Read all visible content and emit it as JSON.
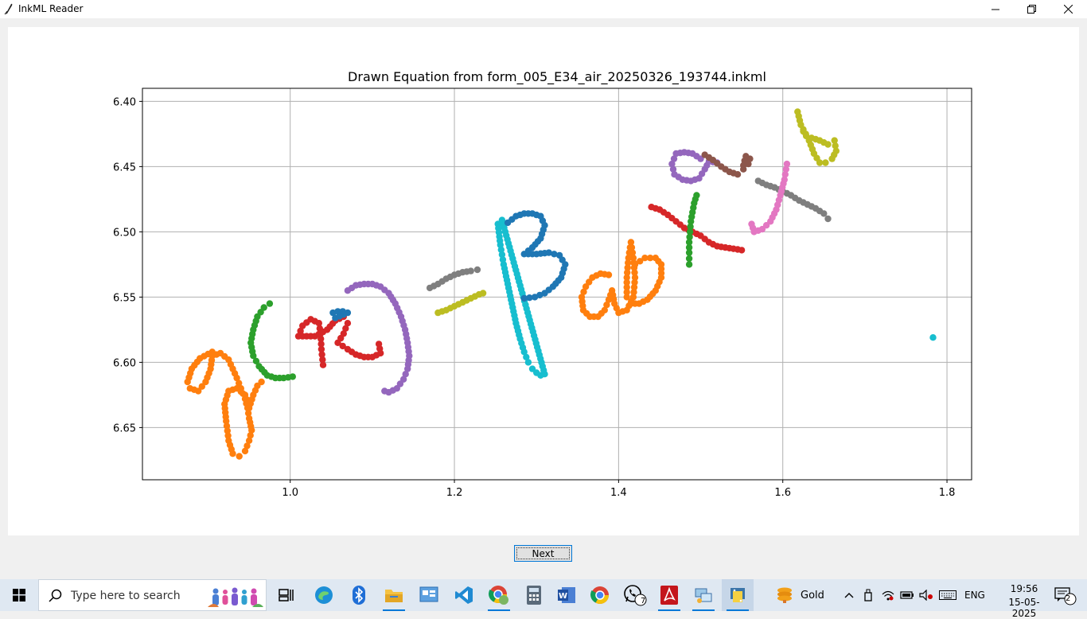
{
  "window": {
    "title": "InkML Reader"
  },
  "chart_data": {
    "type": "scatter",
    "title": "Drawn Equation from form_005_E34_air_20250326_193744.inkml",
    "xlabel": "",
    "ylabel": "",
    "xlim": [
      0.82,
      1.83
    ],
    "ylim": [
      6.69,
      6.39
    ],
    "y_inverted": true,
    "xticks": [
      "1.0",
      "1.2",
      "1.4",
      "1.6",
      "1.8"
    ],
    "xtick_values": [
      1.0,
      1.2,
      1.4,
      1.6,
      1.8
    ],
    "yticks": [
      "6.40",
      "6.45",
      "6.50",
      "6.55",
      "6.60",
      "6.65"
    ],
    "ytick_values": [
      6.4,
      6.45,
      6.5,
      6.55,
      6.6,
      6.65
    ],
    "grid": true,
    "series": [
      {
        "color": "#ff7f0e",
        "points": [
          [
            0.905,
            6.592
          ],
          [
            0.89,
            6.597
          ],
          [
            0.88,
            6.605
          ],
          [
            0.875,
            6.615
          ],
          [
            0.878,
            6.62
          ],
          [
            0.888,
            6.622
          ],
          [
            0.897,
            6.615
          ],
          [
            0.903,
            6.605
          ],
          [
            0.905,
            6.595
          ],
          [
            0.915,
            6.593
          ],
          [
            0.925,
            6.598
          ],
          [
            0.93,
            6.605
          ],
          [
            0.935,
            6.612
          ],
          [
            0.94,
            6.62
          ],
          [
            0.945,
            6.628
          ],
          [
            0.948,
            6.635
          ],
          [
            0.95,
            6.643
          ],
          [
            0.953,
            6.652
          ],
          [
            0.95,
            6.66
          ],
          [
            0.945,
            6.668
          ],
          [
            0.938,
            6.672
          ],
          [
            0.93,
            6.67
          ],
          [
            0.925,
            6.66
          ],
          [
            0.922,
            6.645
          ],
          [
            0.92,
            6.632
          ],
          [
            0.925,
            6.622
          ],
          [
            0.935,
            6.62
          ],
          [
            0.945,
            6.625
          ],
          [
            0.95,
            6.635
          ],
          [
            0.955,
            6.625
          ],
          [
            0.96,
            6.618
          ],
          [
            0.965,
            6.615
          ]
        ]
      },
      {
        "color": "#2ca02c",
        "points": [
          [
            0.975,
            6.555
          ],
          [
            0.968,
            6.558
          ],
          [
            0.96,
            6.565
          ],
          [
            0.955,
            6.575
          ],
          [
            0.952,
            6.585
          ],
          [
            0.955,
            6.595
          ],
          [
            0.962,
            6.603
          ],
          [
            0.972,
            6.61
          ],
          [
            0.982,
            6.612
          ],
          [
            0.992,
            6.612
          ],
          [
            1.003,
            6.611
          ]
        ]
      },
      {
        "color": "#d62728",
        "points": [
          [
            1.04,
            6.602
          ],
          [
            1.038,
            6.59
          ],
          [
            1.037,
            6.578
          ],
          [
            1.035,
            6.57
          ],
          [
            1.025,
            6.567
          ],
          [
            1.015,
            6.572
          ],
          [
            1.01,
            6.58
          ],
          [
            1.03,
            6.58
          ],
          [
            1.045,
            6.575
          ],
          [
            1.055,
            6.568
          ],
          [
            1.065,
            6.565
          ],
          [
            1.07,
            6.57
          ],
          [
            1.065,
            6.578
          ],
          [
            1.058,
            6.585
          ],
          [
            1.07,
            6.59
          ],
          [
            1.08,
            6.594
          ],
          [
            1.09,
            6.596
          ],
          [
            1.1,
            6.596
          ],
          [
            1.11,
            6.593
          ],
          [
            1.108,
            6.586
          ]
        ]
      },
      {
        "color": "#1f77b4",
        "points": [
          [
            1.052,
            6.562
          ],
          [
            1.058,
            6.561
          ],
          [
            1.064,
            6.561
          ],
          [
            1.07,
            6.562
          ],
          [
            1.055,
            6.566
          ]
        ]
      },
      {
        "color": "#9467bd",
        "points": [
          [
            1.07,
            6.545
          ],
          [
            1.08,
            6.541
          ],
          [
            1.09,
            6.54
          ],
          [
            1.1,
            6.54
          ],
          [
            1.11,
            6.542
          ],
          [
            1.12,
            6.547
          ],
          [
            1.128,
            6.555
          ],
          [
            1.135,
            6.565
          ],
          [
            1.14,
            6.575
          ],
          [
            1.143,
            6.585
          ],
          [
            1.145,
            6.595
          ],
          [
            1.143,
            6.605
          ],
          [
            1.138,
            6.613
          ],
          [
            1.13,
            6.62
          ],
          [
            1.12,
            6.623
          ],
          [
            1.115,
            6.622
          ]
        ]
      },
      {
        "color": "#7f7f7f",
        "points": [
          [
            1.17,
            6.543
          ],
          [
            1.18,
            6.54
          ],
          [
            1.19,
            6.536
          ],
          [
            1.2,
            6.533
          ],
          [
            1.21,
            6.531
          ],
          [
            1.22,
            6.53
          ],
          [
            1.228,
            6.529
          ]
        ]
      },
      {
        "color": "#bcbd22",
        "points": [
          [
            1.18,
            6.562
          ],
          [
            1.19,
            6.56
          ],
          [
            1.2,
            6.557
          ],
          [
            1.21,
            6.554
          ],
          [
            1.22,
            6.551
          ],
          [
            1.23,
            6.548
          ],
          [
            1.235,
            6.547
          ]
        ]
      },
      {
        "color": "#17becf",
        "points": [
          [
            1.253,
            6.494
          ],
          [
            1.256,
            6.51
          ],
          [
            1.26,
            6.525
          ],
          [
            1.265,
            6.54
          ],
          [
            1.27,
            6.555
          ],
          [
            1.275,
            6.57
          ],
          [
            1.28,
            6.582
          ],
          [
            1.285,
            6.592
          ],
          [
            1.29,
            6.6
          ],
          [
            1.295,
            6.605
          ],
          [
            1.3,
            6.608
          ],
          [
            1.305,
            6.61
          ],
          [
            1.31,
            6.609
          ],
          [
            1.258,
            6.491
          ]
        ]
      },
      {
        "color": "#1f77b4",
        "points": [
          [
            1.265,
            6.493
          ],
          [
            1.275,
            6.488
          ],
          [
            1.285,
            6.486
          ],
          [
            1.295,
            6.486
          ],
          [
            1.305,
            6.488
          ],
          [
            1.31,
            6.495
          ],
          [
            1.305,
            6.505
          ],
          [
            1.295,
            6.512
          ],
          [
            1.285,
            6.517
          ],
          [
            1.3,
            6.517
          ],
          [
            1.315,
            6.516
          ],
          [
            1.328,
            6.518
          ],
          [
            1.335,
            6.525
          ],
          [
            1.33,
            6.535
          ],
          [
            1.32,
            6.542
          ],
          [
            1.31,
            6.547
          ],
          [
            1.298,
            6.55
          ],
          [
            1.285,
            6.551
          ]
        ]
      },
      {
        "color": "#ff7f0e",
        "points": [
          [
            1.388,
            6.533
          ],
          [
            1.378,
            6.532
          ],
          [
            1.368,
            6.535
          ],
          [
            1.36,
            6.542
          ],
          [
            1.355,
            6.55
          ],
          [
            1.357,
            6.56
          ],
          [
            1.365,
            6.565
          ],
          [
            1.375,
            6.565
          ],
          [
            1.383,
            6.56
          ],
          [
            1.388,
            6.552
          ],
          [
            1.392,
            6.545
          ],
          [
            1.395,
            6.555
          ],
          [
            1.4,
            6.562
          ],
          [
            1.41,
            6.56
          ],
          [
            1.418,
            6.55
          ],
          [
            1.42,
            6.535
          ],
          [
            1.418,
            6.52
          ],
          [
            1.415,
            6.508
          ],
          [
            1.412,
            6.52
          ],
          [
            1.41,
            6.535
          ],
          [
            1.41,
            6.55
          ],
          [
            1.415,
            6.555
          ],
          [
            1.425,
            6.555
          ],
          [
            1.435,
            6.552
          ],
          [
            1.445,
            6.545
          ],
          [
            1.452,
            6.535
          ],
          [
            1.452,
            6.525
          ],
          [
            1.445,
            6.52
          ],
          [
            1.432,
            6.52
          ],
          [
            1.42,
            6.525
          ]
        ]
      },
      {
        "color": "#d62728",
        "points": [
          [
            1.44,
            6.481
          ],
          [
            1.45,
            6.483
          ],
          [
            1.46,
            6.487
          ],
          [
            1.47,
            6.492
          ],
          [
            1.48,
            6.497
          ],
          [
            1.49,
            6.5
          ],
          [
            1.5,
            6.503
          ],
          [
            1.51,
            6.508
          ],
          [
            1.52,
            6.511
          ],
          [
            1.53,
            6.512
          ],
          [
            1.54,
            6.513
          ],
          [
            1.55,
            6.514
          ]
        ]
      },
      {
        "color": "#2ca02c",
        "points": [
          [
            1.495,
            6.472
          ],
          [
            1.492,
            6.478
          ],
          [
            1.49,
            6.485
          ],
          [
            1.488,
            6.492
          ],
          [
            1.487,
            6.5
          ],
          [
            1.486,
            6.508
          ],
          [
            1.486,
            6.516
          ],
          [
            1.486,
            6.525
          ]
        ]
      },
      {
        "color": "#9467bd",
        "points": [
          [
            1.5,
            6.444
          ],
          [
            1.49,
            6.44
          ],
          [
            1.48,
            6.439
          ],
          [
            1.47,
            6.44
          ],
          [
            1.465,
            6.448
          ],
          [
            1.468,
            6.456
          ],
          [
            1.478,
            6.46
          ],
          [
            1.488,
            6.461
          ],
          [
            1.498,
            6.459
          ],
          [
            1.505,
            6.452
          ],
          [
            1.51,
            6.446
          ],
          [
            1.52,
            6.447
          ]
        ]
      },
      {
        "color": "#8c564b",
        "points": [
          [
            1.505,
            6.441
          ],
          [
            1.515,
            6.445
          ],
          [
            1.525,
            6.45
          ],
          [
            1.535,
            6.454
          ],
          [
            1.545,
            6.456
          ],
          [
            1.552,
            6.452
          ],
          [
            1.558,
            6.448
          ],
          [
            1.56,
            6.444
          ],
          [
            1.555,
            6.442
          ],
          [
            1.552,
            6.449
          ]
        ]
      },
      {
        "color": "#7f7f7f",
        "points": [
          [
            1.57,
            6.461
          ],
          [
            1.58,
            6.464
          ],
          [
            1.59,
            6.466
          ],
          [
            1.6,
            6.469
          ],
          [
            1.61,
            6.472
          ],
          [
            1.62,
            6.476
          ],
          [
            1.63,
            6.479
          ],
          [
            1.64,
            6.482
          ],
          [
            1.65,
            6.486
          ],
          [
            1.655,
            6.49
          ]
        ]
      },
      {
        "color": "#e377c2",
        "points": [
          [
            1.605,
            6.448
          ],
          [
            1.602,
            6.46
          ],
          [
            1.597,
            6.472
          ],
          [
            1.592,
            6.483
          ],
          [
            1.585,
            6.492
          ],
          [
            1.575,
            6.498
          ],
          [
            1.565,
            6.5
          ],
          [
            1.562,
            6.494
          ]
        ]
      },
      {
        "color": "#bcbd22",
        "points": [
          [
            1.618,
            6.408
          ],
          [
            1.622,
            6.418
          ],
          [
            1.628,
            6.425
          ],
          [
            1.635,
            6.428
          ],
          [
            1.645,
            6.43
          ],
          [
            1.655,
            6.433
          ],
          [
            1.663,
            6.43
          ],
          [
            1.665,
            6.438
          ],
          [
            1.66,
            6.444
          ],
          [
            1.652,
            6.447
          ],
          [
            1.645,
            6.447
          ],
          [
            1.638,
            6.44
          ],
          [
            1.632,
            6.43
          ],
          [
            1.625,
            6.423
          ]
        ]
      },
      {
        "color": "#17becf",
        "points": [
          [
            1.783,
            6.581
          ]
        ]
      }
    ]
  },
  "controls": {
    "next_label": "Next"
  },
  "taskbar": {
    "search_placeholder": "Type here to search",
    "weather_label": "Gold",
    "language": "ENG",
    "time": "19:56",
    "date": "15-05-2025",
    "whatsapp_badge": "7",
    "notification_count": "2"
  }
}
